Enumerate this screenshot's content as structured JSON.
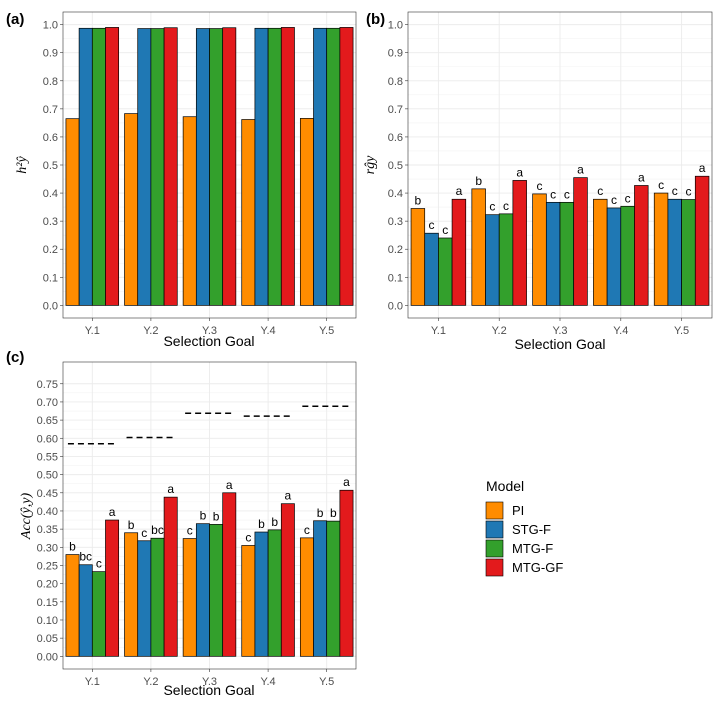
{
  "legend": {
    "title": "Model",
    "items": [
      {
        "label": "PI",
        "color": "#FF8C00"
      },
      {
        "label": "STG-F",
        "color": "#1F78B4"
      },
      {
        "label": "MTG-F",
        "color": "#33A02C"
      },
      {
        "label": "MTG-GF",
        "color": "#E31A1C"
      }
    ]
  },
  "chart_data": [
    {
      "panel": "(a)",
      "type": "bar",
      "xlabel": "Selection Goal",
      "ylabel": "h²ŷ",
      "ylim": [
        0,
        1.0
      ],
      "yticks": [
        "0.0",
        "0.1",
        "0.2",
        "0.3",
        "0.4",
        "0.5",
        "0.6",
        "0.7",
        "0.8",
        "0.9",
        "1.0"
      ],
      "categories": [
        "Y.1",
        "Y.2",
        "Y.3",
        "Y.4",
        "Y.5"
      ],
      "series": [
        {
          "name": "PI",
          "values": [
            0.665,
            0.683,
            0.672,
            0.662,
            0.666
          ]
        },
        {
          "name": "STG-F",
          "values": [
            0.987,
            0.986,
            0.986,
            0.987,
            0.987
          ]
        },
        {
          "name": "MTG-F",
          "values": [
            0.987,
            0.986,
            0.986,
            0.987,
            0.987
          ]
        },
        {
          "name": "MTG-GF",
          "values": [
            0.99,
            0.989,
            0.989,
            0.99,
            0.99
          ]
        }
      ],
      "grid": true
    },
    {
      "panel": "(b)",
      "type": "bar",
      "xlabel": "Selection Goal",
      "ylabel": "rĝy",
      "ylim": [
        0,
        1.0
      ],
      "yticks": [
        "0.0",
        "0.1",
        "0.2",
        "0.3",
        "0.4",
        "0.5",
        "0.6",
        "0.7",
        "0.8",
        "0.9",
        "1.0"
      ],
      "categories": [
        "Y.1",
        "Y.2",
        "Y.3",
        "Y.4",
        "Y.5"
      ],
      "series": [
        {
          "name": "PI",
          "values": [
            0.345,
            0.415,
            0.397,
            0.378,
            0.4
          ],
          "labels": [
            "b",
            "b",
            "c",
            "c",
            "c"
          ]
        },
        {
          "name": "STG-F",
          "values": [
            0.257,
            0.323,
            0.367,
            0.347,
            0.378
          ],
          "labels": [
            "c",
            "c",
            "c",
            "c",
            "c"
          ]
        },
        {
          "name": "MTG-F",
          "values": [
            0.24,
            0.326,
            0.367,
            0.353,
            0.377
          ],
          "labels": [
            "c",
            "c",
            "c",
            "c",
            "c"
          ]
        },
        {
          "name": "MTG-GF",
          "values": [
            0.378,
            0.445,
            0.455,
            0.427,
            0.46
          ],
          "labels": [
            "a",
            "a",
            "a",
            "a",
            "a"
          ]
        }
      ],
      "grid": true
    },
    {
      "panel": "(c)",
      "type": "bar",
      "xlabel": "Selection Goal",
      "ylabel": "Acc(ŷ,y)",
      "ylim": [
        0,
        0.775
      ],
      "yticks": [
        "0.00",
        "0.05",
        "0.10",
        "0.15",
        "0.20",
        "0.25",
        "0.30",
        "0.35",
        "0.40",
        "0.45",
        "0.50",
        "0.55",
        "0.60",
        "0.65",
        "0.70",
        "0.75"
      ],
      "categories": [
        "Y.1",
        "Y.2",
        "Y.3",
        "Y.4",
        "Y.5"
      ],
      "series": [
        {
          "name": "PI",
          "values": [
            0.28,
            0.34,
            0.324,
            0.305,
            0.326
          ],
          "labels": [
            "b",
            "b",
            "c",
            "c",
            "c"
          ]
        },
        {
          "name": "STG-F",
          "values": [
            0.252,
            0.318,
            0.365,
            0.342,
            0.373
          ],
          "labels": [
            "bc",
            "c",
            "b",
            "b",
            "b"
          ]
        },
        {
          "name": "MTG-F",
          "values": [
            0.233,
            0.325,
            0.363,
            0.348,
            0.372
          ],
          "labels": [
            "c",
            "bc",
            "b",
            "b",
            "b"
          ]
        },
        {
          "name": "MTG-GF",
          "values": [
            0.375,
            0.438,
            0.45,
            0.42,
            0.457
          ],
          "labels": [
            "a",
            "a",
            "a",
            "a",
            "a"
          ]
        }
      ],
      "reference_dashes": [
        0.585,
        0.602,
        0.669,
        0.661,
        0.688
      ],
      "grid": true
    }
  ]
}
